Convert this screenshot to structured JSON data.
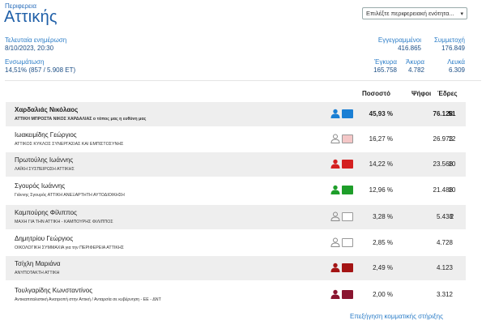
{
  "header": {
    "region_label": "Περιφερεια",
    "region_name": "Αττικής",
    "selector_placeholder": "Επιλέξτε περιφερειακή ενότητα..."
  },
  "meta": {
    "last_update_label": "Τελευταία ενημέρωση",
    "last_update_value": "8/10/2023, 20:30",
    "integration_label": "Ενσωμάτωση",
    "integration_value": "14,51% (857 / 5.908 ΕΤ)",
    "registered_label": "Εγγεγραμμένοι",
    "registered_value": "416.865",
    "turnout_label": "Συμμετοχή",
    "turnout_value": "176.849",
    "valid_label": "Έγκυρα",
    "valid_value": "165.758",
    "invalid_label": "Άκυρα",
    "invalid_value": "4.782",
    "blank_label": "Λευκά",
    "blank_value": "6.309"
  },
  "table": {
    "col_percent": "Ποσοστό",
    "col_votes": "Ψήφοι",
    "col_seats": "Έδρες",
    "rows": [
      {
        "name": "Χαρδαλιάς Νικόλαος",
        "party": "ΑΤΤΙΚΗ ΜΠΡΟΣΤΑ ΝΙΚΟΣ ΧΑΡΔΑΛΙΑΣ ο τόπος μας η ευθύνη μας",
        "percent": "45,93 %",
        "votes": "76.128",
        "seats": "51",
        "color": "#1a7fd4",
        "person_color": "#1a7fd4"
      },
      {
        "name": "Ιωακειμίδης Γεώργιος",
        "party": "ΑΤΤΙΚΟΣ ΚΥΚΛΟΣ ΣΥΝΕΡΓΑΣΙΑΣ ΚΑΙ ΕΜΠΙΣΤΟΣΥΝΗΣ",
        "percent": "16,27 %",
        "votes": "26.973",
        "seats": "12",
        "color": "#f4c7c7",
        "person_color": "#8a8a8a"
      },
      {
        "name": "Πρωτούλης Ιωάννης",
        "party": "ΛΑΪΚΗ ΣΥΣΠΕΙΡΩΣΗ ΑΤΤΙΚΗΣ",
        "percent": "14,22 %",
        "votes": "23.568",
        "seats": "10",
        "color": "#d42020",
        "person_color": "#d42020"
      },
      {
        "name": "Σγουρός Ιωάννης",
        "party": "Γιάννης Σγουρός ΑΤΤΙΚΗ ΑΝΕΞΑΡΤΗΤΗ ΑΥΤΟΔΙΟΙΚΗΣΗ",
        "percent": "12,96 %",
        "votes": "21.488",
        "seats": "10",
        "color": "#1e9e2a",
        "person_color": "#1e9e2a"
      },
      {
        "name": "Καμπούρης Φίλιππος",
        "party": "ΜΑΧΗ ΓΙΑ ΤΗΝ ΑΤΤΙΚΗ - ΚΑΜΠΟΥΡΗΣ ΦΙΛΙΠΠΟΣ",
        "percent": "3,28 %",
        "votes": "5.438",
        "seats": "2",
        "color": "#ffffff",
        "person_color": "#8a8a8a"
      },
      {
        "name": "Δημητρίου Γεώργιος",
        "party": "ΟΙΚΟΛΟΓΙΚΗ ΣΥΜΜΑΧΙΑ για την ΠΕΡΙΦΕΡΕΙΑ ΑΤΤΙΚΗΣ",
        "percent": "2,85 %",
        "votes": "4.728",
        "seats": "",
        "color": "#ffffff",
        "person_color": "#8a8a8a"
      },
      {
        "name": "Τσίχλη Μαριάνα",
        "party": "ΑΝΥΠΟΤΑΚΤΗ ΑΤΤΙΚΗ",
        "percent": "2,49 %",
        "votes": "4.123",
        "seats": "",
        "color": "#a41414",
        "person_color": "#a41414"
      },
      {
        "name": "Τουλγαρίδης Κωνσταντίνος",
        "party": "Αντικαπιταλιστική Ανατροπή στην Αττική / Ανταρσία σε κυβέρνηση - ΕΕ - ΔΝΤ",
        "percent": "2,00 %",
        "votes": "3.312",
        "seats": "",
        "color": "#8a1530",
        "person_color": "#8a1530"
      }
    ]
  },
  "footer": {
    "link_label": "Επεξήγηση κομματικής στήριξης"
  }
}
